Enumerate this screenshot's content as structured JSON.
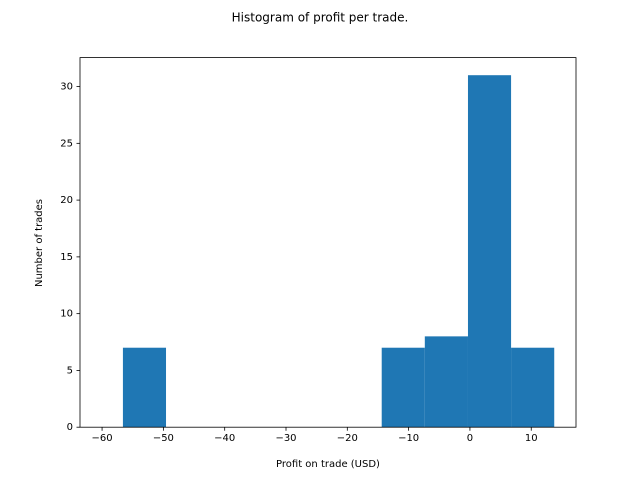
{
  "chart_data": {
    "type": "histogram",
    "title": "Histogram of profit per trade.",
    "xlabel": "Profit on trade (USD)",
    "ylabel": "Number of trades",
    "bins": [
      -56.6,
      -49.57,
      -42.53,
      -35.5,
      -28.46,
      -21.43,
      -14.39,
      -7.36,
      -0.32,
      6.71,
      13.75
    ],
    "counts": [
      7,
      0,
      0,
      0,
      0,
      0,
      7,
      8,
      31,
      7
    ],
    "color": "#1f77b4",
    "xlim": [
      -63.6,
      17.3
    ],
    "ylim": [
      0,
      32.55
    ],
    "xticks": [
      {
        "value": -60,
        "label": "−60"
      },
      {
        "value": -50,
        "label": "−50"
      },
      {
        "value": -40,
        "label": "−40"
      },
      {
        "value": -30,
        "label": "−30"
      },
      {
        "value": -20,
        "label": "−20"
      },
      {
        "value": -10,
        "label": "−10"
      },
      0,
      10
    ],
    "yticks": [
      0,
      5,
      10,
      15,
      20,
      25,
      30
    ]
  }
}
